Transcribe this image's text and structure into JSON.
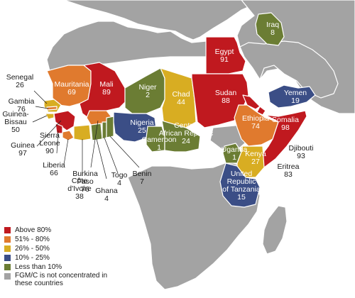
{
  "legend": {
    "items": [
      {
        "label": "Above 80%",
        "color": "#c0191f"
      },
      {
        "label": "51% - 80%",
        "color": "#e07a2e"
      },
      {
        "label": "26% - 50%",
        "color": "#d8ad22"
      },
      {
        "label": "10% - 25%",
        "color": "#3b4e86"
      },
      {
        "label": "Less than 10%",
        "color": "#6b7d34"
      },
      {
        "label": "FGM/C is not concentrated in these countries",
        "color": "#a3a3a3"
      }
    ]
  },
  "countries": {
    "senegal": {
      "name": "Senegal",
      "value": "26",
      "category": "26% - 50%"
    },
    "gambia": {
      "name": "Gambia",
      "value": "76",
      "category": "51% - 80%"
    },
    "guinea_bissau": {
      "name": "Guinea-\nBissau",
      "value": "50",
      "category": "26% - 50%"
    },
    "guinea": {
      "name": "Guinea",
      "value": "97",
      "category": "Above 80%"
    },
    "sierra_leone": {
      "name": "Sierra\nLeone",
      "value": "90",
      "category": "Above 80%"
    },
    "liberia": {
      "name": "Liberia",
      "value": "66",
      "category": "51% - 80%"
    },
    "cote_divoire": {
      "name": "Côte\nd'Ivoire",
      "value": "38",
      "category": "26% - 50%"
    },
    "burkina_faso": {
      "name": "Burkina\nFaso",
      "value": "76",
      "category": "51% - 80%"
    },
    "ghana": {
      "name": "Ghana",
      "value": "4",
      "category": "Less than 10%"
    },
    "togo": {
      "name": "Togo",
      "value": "4",
      "category": "Less than 10%"
    },
    "benin": {
      "name": "Benin",
      "value": "7",
      "category": "Less than 10%"
    },
    "mauritania": {
      "name": "Mauritania",
      "value": "69",
      "category": "51% - 80%"
    },
    "mali": {
      "name": "Mali",
      "value": "89",
      "category": "Above 80%"
    },
    "niger": {
      "name": "Niger",
      "value": "2",
      "category": "Less than 10%"
    },
    "nigeria": {
      "name": "Nigeria",
      "value": "25",
      "category": "10% - 25%"
    },
    "chad": {
      "name": "Chad",
      "value": "44",
      "category": "26% - 50%"
    },
    "cameroon": {
      "name": "Cameroon",
      "value": "1",
      "category": "Less than 10%"
    },
    "car": {
      "name": "Central\nAfrican Republic",
      "value": "24",
      "category": "10% - 25%"
    },
    "egypt": {
      "name": "Egypt",
      "value": "91",
      "category": "Above 80%"
    },
    "sudan": {
      "name": "Sudan",
      "value": "88",
      "category": "Above 80%"
    },
    "iraq": {
      "name": "Iraq",
      "value": "8",
      "category": "Less than 10%"
    },
    "yemen": {
      "name": "Yemen",
      "value": "19",
      "category": "10% - 25%"
    },
    "ethiopia": {
      "name": "Ethiopia",
      "value": "74",
      "category": "51% - 80%"
    },
    "somalia": {
      "name": "Somalia",
      "value": "98",
      "category": "Above 80%"
    },
    "djibouti": {
      "name": "Djibouti",
      "value": "93",
      "category": "Above 80%"
    },
    "eritrea": {
      "name": "Eritrea",
      "value": "83",
      "category": "Above 80%"
    },
    "uganda": {
      "name": "Uganda",
      "value": "1",
      "category": "Less than 10%"
    },
    "kenya": {
      "name": "Kenya",
      "value": "27",
      "category": "26% - 50%"
    },
    "tanzania": {
      "name": "United\nRepublic\nof Tanzania",
      "value": "15",
      "category": "10% - 25%"
    }
  }
}
